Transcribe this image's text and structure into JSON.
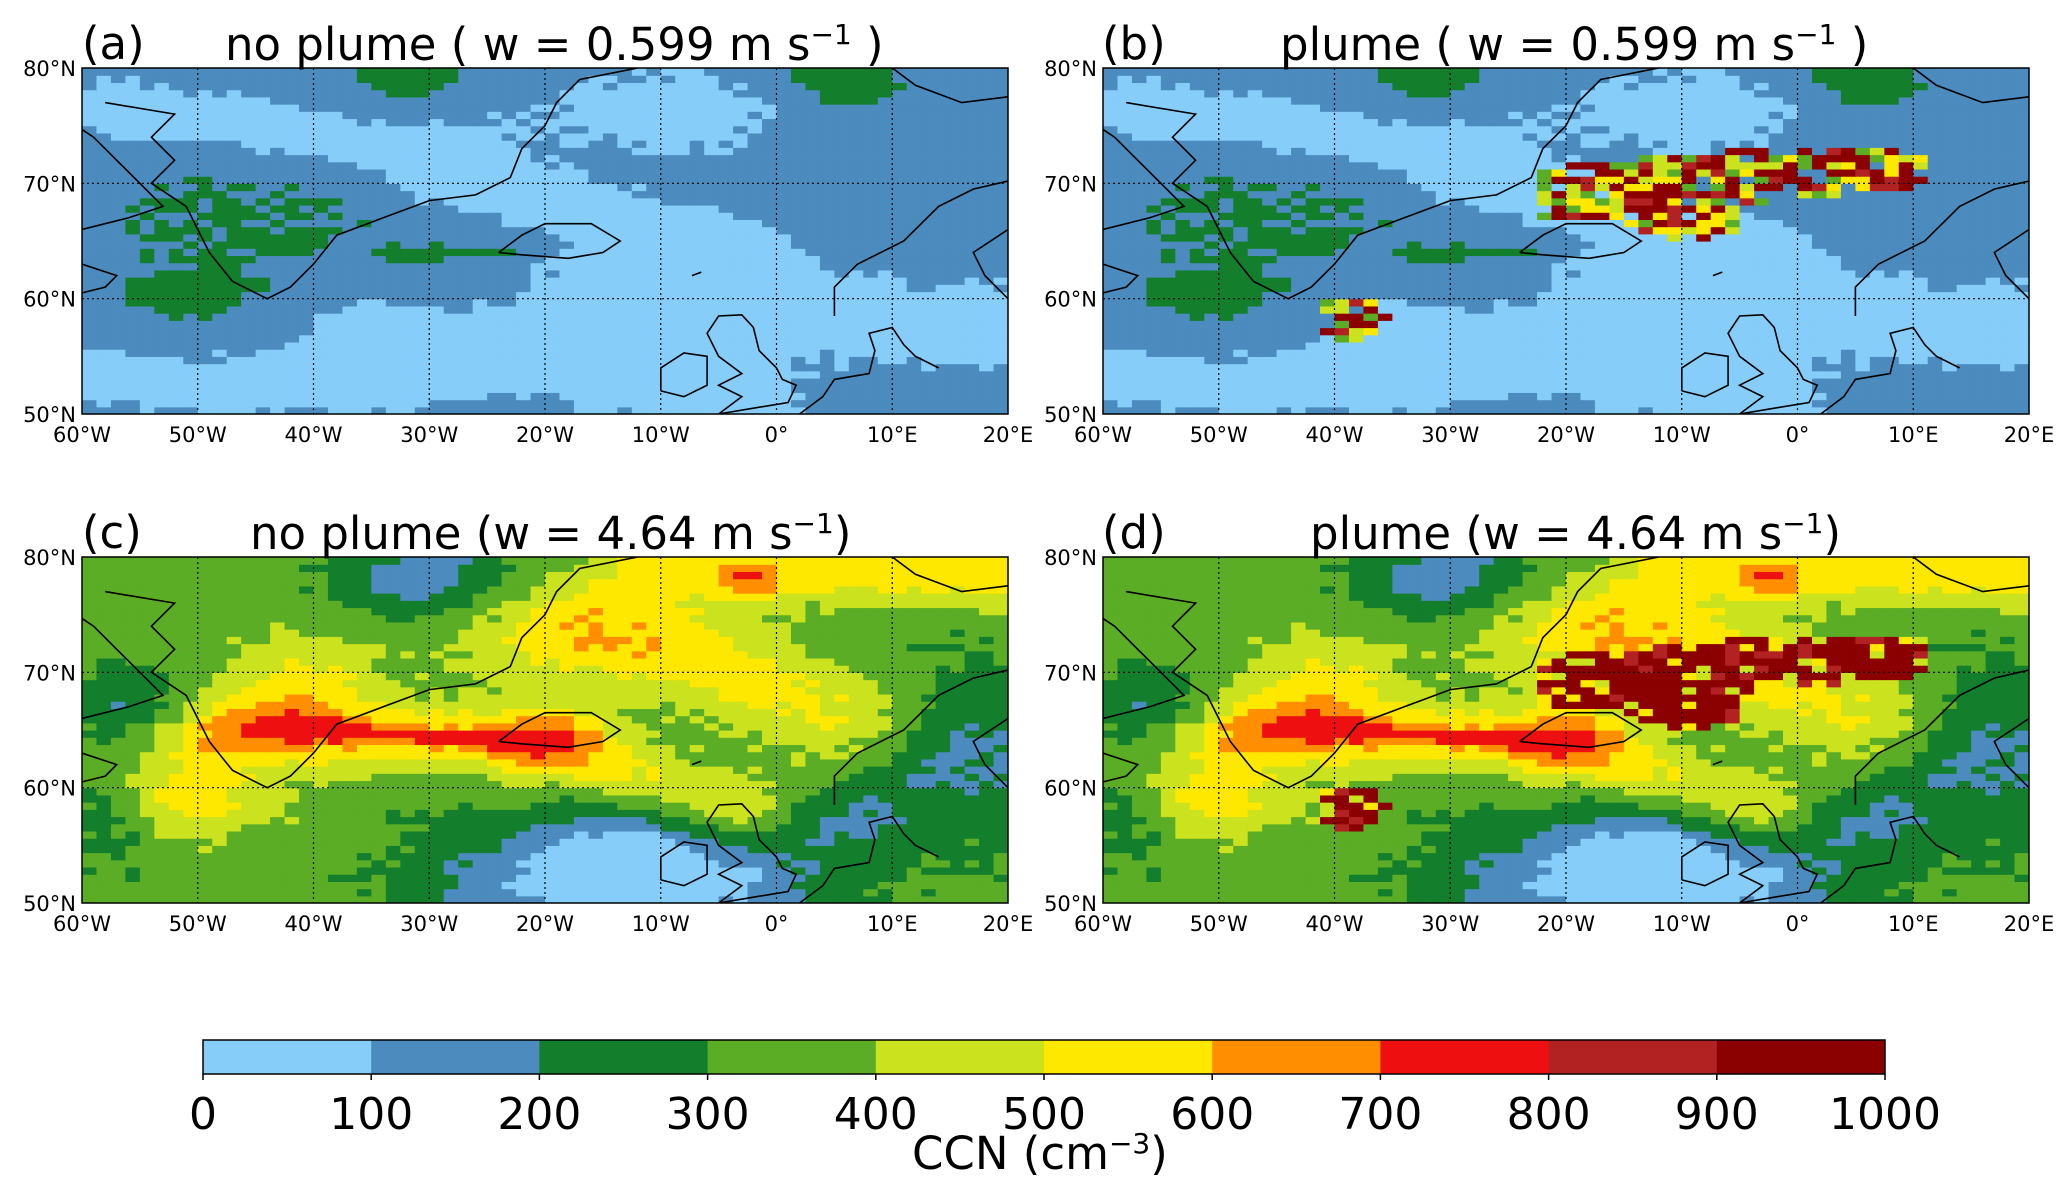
{
  "panels": [
    {
      "id": "a",
      "label": "(a)",
      "title_pre": "no plume ( w = 0.599 m s",
      "title_sup": "−1",
      "title_post": " )",
      "plume": false,
      "strong": false
    },
    {
      "id": "b",
      "label": "(b)",
      "title_pre": "plume ( w = 0.599 m s",
      "title_sup": "−1",
      "title_post": " )",
      "plume": true,
      "strong": false
    },
    {
      "id": "c",
      "label": "(c)",
      "title_pre": "no plume (w = 4.64 m s",
      "title_sup": "−1",
      "title_post": ")",
      "plume": false,
      "strong": true
    },
    {
      "id": "d",
      "label": "(d)",
      "title_pre": "plume (w = 4.64 m s",
      "title_sup": "−1",
      "title_post": ")",
      "plume": true,
      "strong": true
    }
  ],
  "chart_data": {
    "type": "heatmap",
    "lon_range": [
      -60,
      20
    ],
    "lat_range": [
      50,
      80
    ],
    "x_ticks": [
      "60°W",
      "50°W",
      "40°W",
      "30°W",
      "20°W",
      "10°W",
      "0°",
      "10°E",
      "20°E"
    ],
    "y_ticks": [
      "50°N",
      "60°N",
      "70°N",
      "80°N"
    ],
    "colorbar": {
      "label_pre": "CCN (cm",
      "label_sup": "−3",
      "label_post": ")",
      "boundaries": [
        0,
        100,
        200,
        300,
        400,
        500,
        600,
        700,
        800,
        900,
        1000
      ],
      "tick_labels": [
        "0",
        "100",
        "200",
        "300",
        "400",
        "500",
        "600",
        "700",
        "800",
        "900",
        "1000"
      ],
      "colors": [
        "#86cdf9",
        "#4b8bbe",
        "#137f2c",
        "#5aad25",
        "#cbe21e",
        "#ffe800",
        "#ff8f00",
        "#ee1010",
        "#b22222",
        "#8b0000"
      ]
    },
    "grid": true
  }
}
